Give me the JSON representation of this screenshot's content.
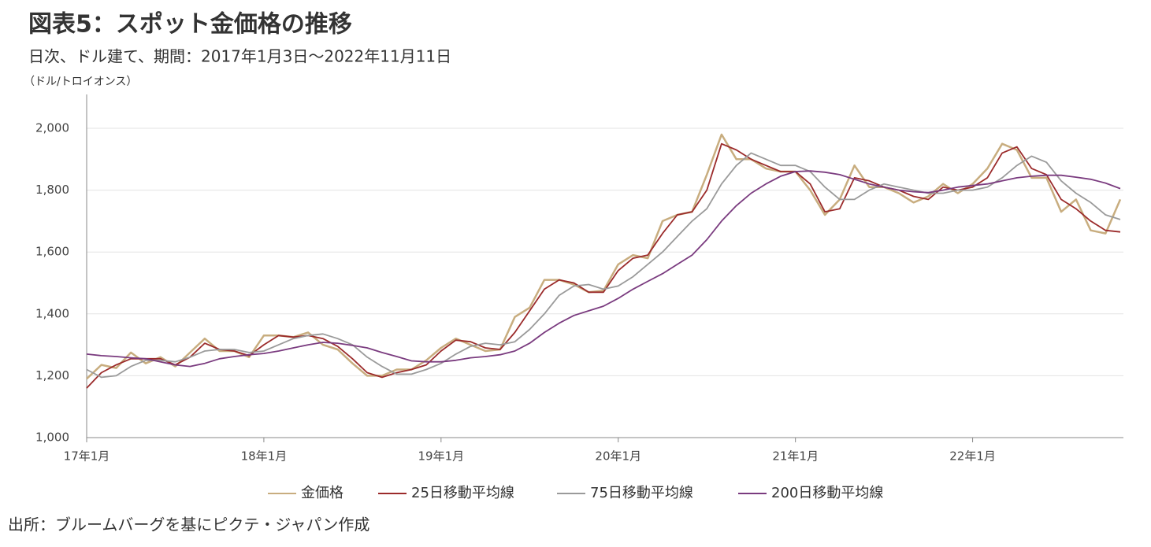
{
  "chart_data": {
    "type": "line",
    "title": "図表5：スポット金価格の推移",
    "subtitle": "日次、ドル建て、期間：2017年1月3日～2022年11月11日",
    "y_label": "（ドル/トロイオンス）",
    "source": "出所：ブルームバーグを基にピクテ・ジャパン作成",
    "x": [
      "2017-01",
      "2017-02",
      "2017-03",
      "2017-04",
      "2017-05",
      "2017-06",
      "2017-07",
      "2017-08",
      "2017-09",
      "2017-10",
      "2017-11",
      "2017-12",
      "2018-01",
      "2018-02",
      "2018-03",
      "2018-04",
      "2018-05",
      "2018-06",
      "2018-07",
      "2018-08",
      "2018-09",
      "2018-10",
      "2018-11",
      "2018-12",
      "2019-01",
      "2019-02",
      "2019-03",
      "2019-04",
      "2019-05",
      "2019-06",
      "2019-07",
      "2019-08",
      "2019-09",
      "2019-10",
      "2019-11",
      "2019-12",
      "2020-01",
      "2020-02",
      "2020-03",
      "2020-04",
      "2020-05",
      "2020-06",
      "2020-07",
      "2020-08",
      "2020-09",
      "2020-10",
      "2020-11",
      "2020-12",
      "2021-01",
      "2021-02",
      "2021-03",
      "2021-04",
      "2021-05",
      "2021-06",
      "2021-07",
      "2021-08",
      "2021-09",
      "2021-10",
      "2021-11",
      "2021-12",
      "2022-01",
      "2022-02",
      "2022-03",
      "2022-04",
      "2022-05",
      "2022-06",
      "2022-07",
      "2022-08",
      "2022-09",
      "2022-10",
      "2022-11"
    ],
    "xticks": [
      {
        "value": "2017-01",
        "label": "17年1月"
      },
      {
        "value": "2018-01",
        "label": "18年1月"
      },
      {
        "value": "2019-01",
        "label": "19年1月"
      },
      {
        "value": "2020-01",
        "label": "20年1月"
      },
      {
        "value": "2021-01",
        "label": "21年1月"
      },
      {
        "value": "2022-01",
        "label": "22年1月"
      }
    ],
    "ylim": [
      1000,
      2000
    ],
    "yticks": [
      {
        "value": 1000,
        "label": "1,000"
      },
      {
        "value": 1200,
        "label": "1,200"
      },
      {
        "value": 1400,
        "label": "1,400"
      },
      {
        "value": 1600,
        "label": "1,600"
      },
      {
        "value": 1800,
        "label": "1,800"
      },
      {
        "value": 2000,
        "label": "2,000"
      }
    ],
    "grid": true,
    "legend": "bottom",
    "series": [
      {
        "name": "金価格",
        "color": "#c8ad7f",
        "values": [
          1190,
          1235,
          1225,
          1275,
          1240,
          1260,
          1230,
          1275,
          1320,
          1280,
          1280,
          1260,
          1330,
          1330,
          1325,
          1340,
          1300,
          1285,
          1240,
          1200,
          1200,
          1220,
          1220,
          1250,
          1290,
          1320,
          1300,
          1280,
          1285,
          1390,
          1420,
          1510,
          1510,
          1495,
          1470,
          1475,
          1560,
          1590,
          1580,
          1700,
          1720,
          1730,
          1850,
          1980,
          1900,
          1900,
          1870,
          1860,
          1860,
          1800,
          1720,
          1770,
          1880,
          1810,
          1810,
          1790,
          1760,
          1780,
          1820,
          1790,
          1820,
          1870,
          1950,
          1930,
          1840,
          1840,
          1730,
          1770,
          1670,
          1660,
          1770
        ]
      },
      {
        "name": "25日移動平均線",
        "color": "#9b2b2b",
        "values": [
          1160,
          1210,
          1235,
          1255,
          1255,
          1255,
          1235,
          1260,
          1305,
          1285,
          1280,
          1265,
          1300,
          1330,
          1325,
          1330,
          1320,
          1295,
          1255,
          1210,
          1195,
          1210,
          1220,
          1235,
          1280,
          1315,
          1310,
          1290,
          1285,
          1340,
          1410,
          1480,
          1510,
          1500,
          1470,
          1470,
          1540,
          1580,
          1590,
          1660,
          1720,
          1730,
          1800,
          1950,
          1930,
          1900,
          1880,
          1860,
          1860,
          1820,
          1730,
          1740,
          1840,
          1830,
          1810,
          1800,
          1780,
          1770,
          1810,
          1800,
          1810,
          1840,
          1920,
          1940,
          1870,
          1850,
          1770,
          1740,
          1700,
          1670,
          1665
        ]
      },
      {
        "name": "75日移動平均線",
        "color": "#9a9a9a",
        "values": [
          1220,
          1195,
          1200,
          1230,
          1250,
          1250,
          1245,
          1260,
          1280,
          1285,
          1285,
          1275,
          1280,
          1300,
          1320,
          1330,
          1335,
          1320,
          1300,
          1260,
          1230,
          1205,
          1205,
          1220,
          1240,
          1270,
          1295,
          1305,
          1300,
          1310,
          1350,
          1400,
          1460,
          1490,
          1495,
          1480,
          1490,
          1520,
          1560,
          1600,
          1650,
          1700,
          1740,
          1820,
          1880,
          1920,
          1900,
          1880,
          1880,
          1860,
          1810,
          1770,
          1770,
          1800,
          1820,
          1810,
          1800,
          1790,
          1790,
          1800,
          1800,
          1810,
          1840,
          1880,
          1910,
          1890,
          1830,
          1790,
          1760,
          1720,
          1705
        ]
      },
      {
        "name": "200日移動平均線",
        "color": "#7a3b7f",
        "values": [
          1270,
          1265,
          1262,
          1258,
          1255,
          1245,
          1235,
          1230,
          1240,
          1255,
          1262,
          1268,
          1272,
          1280,
          1290,
          1300,
          1308,
          1305,
          1298,
          1290,
          1275,
          1262,
          1248,
          1245,
          1245,
          1250,
          1258,
          1262,
          1268,
          1280,
          1305,
          1340,
          1370,
          1395,
          1410,
          1425,
          1450,
          1480,
          1505,
          1530,
          1560,
          1590,
          1640,
          1700,
          1750,
          1790,
          1820,
          1845,
          1860,
          1862,
          1858,
          1850,
          1835,
          1820,
          1810,
          1800,
          1795,
          1792,
          1800,
          1810,
          1815,
          1820,
          1830,
          1840,
          1845,
          1848,
          1848,
          1842,
          1835,
          1823,
          1805
        ]
      }
    ]
  }
}
